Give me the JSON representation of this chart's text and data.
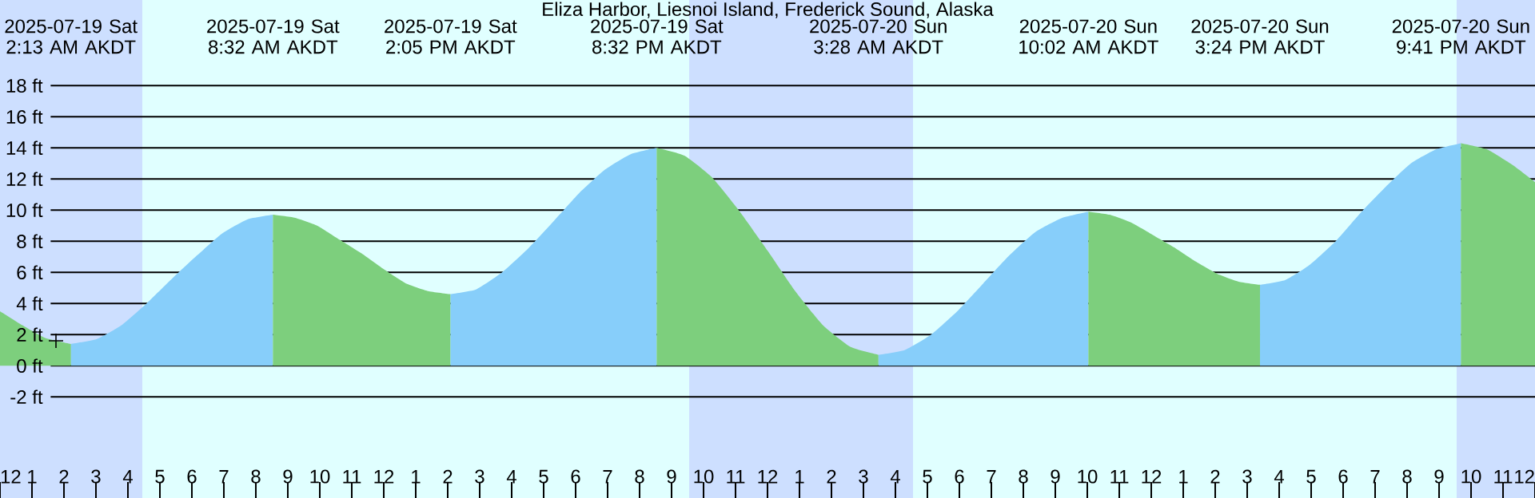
{
  "chart_data": {
    "type": "area",
    "title": "Eliza Harbor, Liesnoi Island, Frederick Sound, Alaska",
    "xlim": [
      "2025-07-19T00:00",
      "2025-07-21T00:00"
    ],
    "ylim": [
      -8.5,
      23.5
    ],
    "xticks": [
      {
        "value": "2025-07-19T00:00",
        "label": "12"
      },
      {
        "value": "2025-07-19T01:00",
        "label": "1"
      },
      {
        "value": "2025-07-19T02:00",
        "label": "2"
      },
      {
        "value": "2025-07-19T03:00",
        "label": "3"
      },
      {
        "value": "2025-07-19T04:00",
        "label": "4"
      },
      {
        "value": "2025-07-19T05:00",
        "label": "5"
      },
      {
        "value": "2025-07-19T06:00",
        "label": "6"
      },
      {
        "value": "2025-07-19T07:00",
        "label": "7"
      },
      {
        "value": "2025-07-19T08:00",
        "label": "8"
      },
      {
        "value": "2025-07-19T09:00",
        "label": "9"
      },
      {
        "value": "2025-07-19T10:00",
        "label": "10"
      },
      {
        "value": "2025-07-19T11:00",
        "label": "11"
      },
      {
        "value": "2025-07-19T12:00",
        "label": "12"
      },
      {
        "value": "2025-07-19T13:00",
        "label": "1"
      },
      {
        "value": "2025-07-19T14:00",
        "label": "2"
      },
      {
        "value": "2025-07-19T15:00",
        "label": "3"
      },
      {
        "value": "2025-07-19T16:00",
        "label": "4"
      },
      {
        "value": "2025-07-19T17:00",
        "label": "5"
      },
      {
        "value": "2025-07-19T18:00",
        "label": "6"
      },
      {
        "value": "2025-07-19T19:00",
        "label": "7"
      },
      {
        "value": "2025-07-19T20:00",
        "label": "8"
      },
      {
        "value": "2025-07-19T21:00",
        "label": "9"
      },
      {
        "value": "2025-07-19T22:00",
        "label": "10"
      },
      {
        "value": "2025-07-19T23:00",
        "label": "11"
      },
      {
        "value": "2025-07-20T00:00",
        "label": "12"
      },
      {
        "value": "2025-07-20T01:00",
        "label": "1"
      },
      {
        "value": "2025-07-20T02:00",
        "label": "2"
      },
      {
        "value": "2025-07-20T03:00",
        "label": "3"
      },
      {
        "value": "2025-07-20T04:00",
        "label": "4"
      },
      {
        "value": "2025-07-20T05:00",
        "label": "5"
      },
      {
        "value": "2025-07-20T06:00",
        "label": "6"
      },
      {
        "value": "2025-07-20T07:00",
        "label": "7"
      },
      {
        "value": "2025-07-20T08:00",
        "label": "8"
      },
      {
        "value": "2025-07-20T09:00",
        "label": "9"
      },
      {
        "value": "2025-07-20T10:00",
        "label": "10"
      },
      {
        "value": "2025-07-20T11:00",
        "label": "11"
      },
      {
        "value": "2025-07-20T12:00",
        "label": "12"
      },
      {
        "value": "2025-07-20T13:00",
        "label": "1"
      },
      {
        "value": "2025-07-20T14:00",
        "label": "2"
      },
      {
        "value": "2025-07-20T15:00",
        "label": "3"
      },
      {
        "value": "2025-07-20T16:00",
        "label": "4"
      },
      {
        "value": "2025-07-20T17:00",
        "label": "5"
      },
      {
        "value": "2025-07-20T18:00",
        "label": "6"
      },
      {
        "value": "2025-07-20T19:00",
        "label": "7"
      },
      {
        "value": "2025-07-20T20:00",
        "label": "8"
      },
      {
        "value": "2025-07-20T21:00",
        "label": "9"
      },
      {
        "value": "2025-07-20T22:00",
        "label": "10"
      },
      {
        "value": "2025-07-20T23:00",
        "label": "11"
      },
      {
        "value": "2025-07-21T00:00",
        "label": "12"
      }
    ],
    "yticks": [
      {
        "value": -2,
        "label": "-2 ft"
      },
      {
        "value": 0,
        "label": "0 ft"
      },
      {
        "value": 2,
        "label": "2 ft"
      },
      {
        "value": 4,
        "label": "4 ft"
      },
      {
        "value": 6,
        "label": "6 ft"
      },
      {
        "value": 8,
        "label": "8 ft"
      },
      {
        "value": 10,
        "label": "10 ft"
      },
      {
        "value": 12,
        "label": "12 ft"
      },
      {
        "value": 14,
        "label": "14 ft"
      },
      {
        "value": 16,
        "label": "16 ft"
      },
      {
        "value": 18,
        "label": "18 ft"
      }
    ],
    "grid": "y",
    "bands": [
      {
        "axis": "x",
        "from": "2025-07-19T00:00",
        "to": "2025-07-19T04:27",
        "color": "#cddfff"
      },
      {
        "axis": "x",
        "from": "2025-07-19T21:33",
        "to": "2025-07-20T04:33",
        "color": "#cddfff"
      },
      {
        "axis": "x",
        "from": "2025-07-20T21:33",
        "to": "2025-07-21T00:00",
        "color": "#cddfff"
      }
    ],
    "annotations": [
      "2025-07-19 Sat 2:13 AM AKDT",
      "2025-07-19 Sat 8:32 AM AKDT",
      "2025-07-19 Sat 2:05 PM AKDT",
      "2025-07-19 Sat 8:32 PM AKDT",
      "2025-07-20 Sun 3:28 AM AKDT",
      "2025-07-20 Sun 10:02 AM AKDT",
      "2025-07-20 Sun 3:24 PM AKDT",
      "2025-07-20 Sun 9:41 PM AKDT"
    ],
    "series": [
      {
        "color": "#87cefa",
        "x": [
          "2025-07-19T02:13",
          "2025-07-19T03:01",
          "2025-07-19T03:48",
          "2025-07-19T04:35",
          "2025-07-19T05:23",
          "2025-07-19T06:10",
          "2025-07-19T06:57",
          "2025-07-19T07:44",
          "2025-07-19T08:32",
          null,
          "2025-07-19T14:05",
          "2025-07-19T14:53",
          "2025-07-19T15:42",
          "2025-07-19T16:30",
          "2025-07-19T17:19",
          "2025-07-19T18:07",
          "2025-07-19T18:55",
          "2025-07-19T19:44",
          "2025-07-19T20:32",
          null,
          "2025-07-20T03:28",
          "2025-07-20T04:17",
          "2025-07-20T05:07",
          "2025-07-20T05:56",
          "2025-07-20T06:45",
          "2025-07-20T07:34",
          "2025-07-20T08:23",
          "2025-07-20T09:13",
          "2025-07-20T10:02",
          null,
          "2025-07-20T15:24",
          "2025-07-20T16:11",
          "2025-07-20T16:58",
          "2025-07-20T17:46",
          "2025-07-20T18:32",
          "2025-07-20T19:20",
          "2025-07-20T20:07",
          "2025-07-20T20:54",
          "2025-07-20T21:41"
        ],
        "values": [
          1.4,
          1.7,
          2.6,
          4.0,
          5.6,
          7.1,
          8.5,
          9.4,
          9.7,
          null,
          4.6,
          4.9,
          6.0,
          7.5,
          9.3,
          11.1,
          12.6,
          13.6,
          14.0,
          null,
          0.7,
          1.0,
          2.0,
          3.5,
          5.3,
          7.1,
          8.6,
          9.5,
          9.9,
          null,
          5.2,
          5.5,
          6.5,
          8.0,
          9.8,
          11.5,
          13.0,
          13.9,
          14.3
        ]
      },
      {
        "color": "#7dcf7d",
        "x": [
          "2025-07-19T00:00",
          "2025-07-19T00:42",
          "2025-07-19T01:24",
          "2025-07-19T02:13",
          null,
          "2025-07-19T08:32",
          "2025-07-19T09:14",
          "2025-07-19T09:55",
          "2025-07-19T10:37",
          "2025-07-19T11:19",
          "2025-07-19T12:00",
          "2025-07-19T12:41",
          "2025-07-19T13:23",
          "2025-07-19T14:05",
          null,
          "2025-07-19T20:32",
          "2025-07-19T21:24",
          "2025-07-19T22:16",
          "2025-07-19T23:08",
          "2025-07-20T00:00",
          "2025-07-20T00:52",
          "2025-07-20T01:44",
          "2025-07-20T02:36",
          "2025-07-20T03:28",
          null,
          "2025-07-20T10:02",
          "2025-07-20T10:42",
          "2025-07-20T11:22",
          "2025-07-20T12:03",
          "2025-07-20T12:43",
          "2025-07-20T13:23",
          "2025-07-20T14:04",
          "2025-07-20T14:44",
          "2025-07-20T15:24",
          null,
          "2025-07-20T21:41",
          "2025-07-20T22:30",
          "2025-07-20T23:18",
          "2025-07-21T00:00"
        ],
        "values": [
          3.5,
          2.6,
          1.8,
          1.4,
          null,
          9.7,
          9.5,
          9.0,
          8.1,
          7.2,
          6.2,
          5.3,
          4.8,
          4.6,
          null,
          14.0,
          13.5,
          12.1,
          9.9,
          7.4,
          4.8,
          2.6,
          1.2,
          0.7,
          null,
          9.9,
          9.7,
          9.2,
          8.4,
          7.6,
          6.7,
          5.9,
          5.4,
          5.2,
          null,
          14.3,
          13.9,
          12.9,
          11.8
        ]
      },
      {
        "type": "scatter",
        "marker": "cross",
        "color": "#000000",
        "x": [
          "2025-07-19T01:45"
        ],
        "values": [
          1.6
        ]
      }
    ]
  }
}
